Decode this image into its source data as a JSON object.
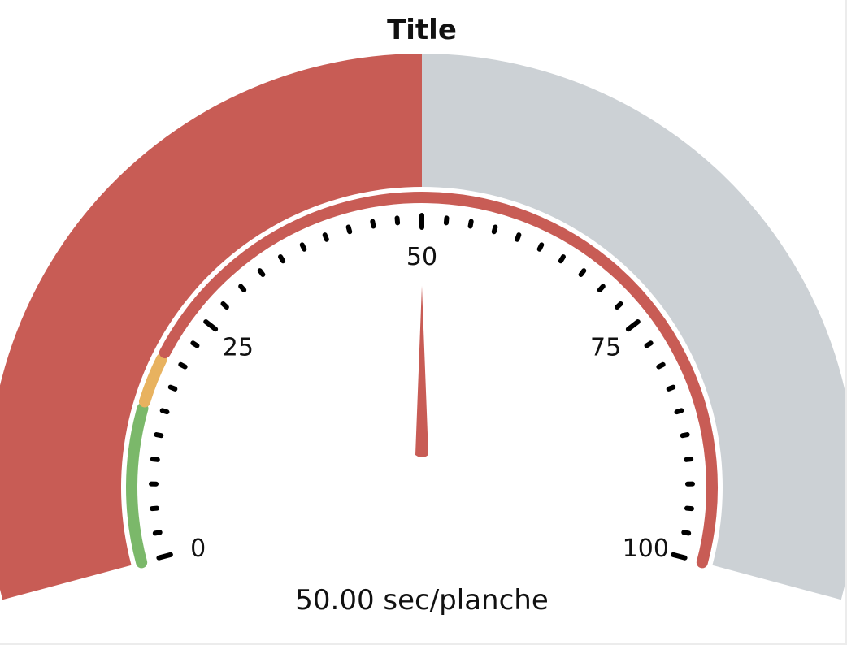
{
  "chart_data": {
    "type": "gauge",
    "title": "Title",
    "value": 50,
    "value_text": "50.00",
    "unit": "sec/planche",
    "min": 0,
    "max": 100,
    "major_ticks": [
      0,
      25,
      50,
      75,
      100
    ],
    "tick_labels": [
      "0",
      "25",
      "50",
      "75",
      "100"
    ],
    "minor_tick_step": 2.5,
    "bands": [
      {
        "from": 0,
        "to": 15,
        "color": "#7bb86a"
      },
      {
        "from": 15,
        "to": 20,
        "color": "#e8b25f"
      },
      {
        "from": 20,
        "to": 100,
        "color": "#c85c55"
      }
    ],
    "fill_color": "#c85c55",
    "track_color": "#ccd1d5",
    "needle_color": "#c85c55"
  }
}
